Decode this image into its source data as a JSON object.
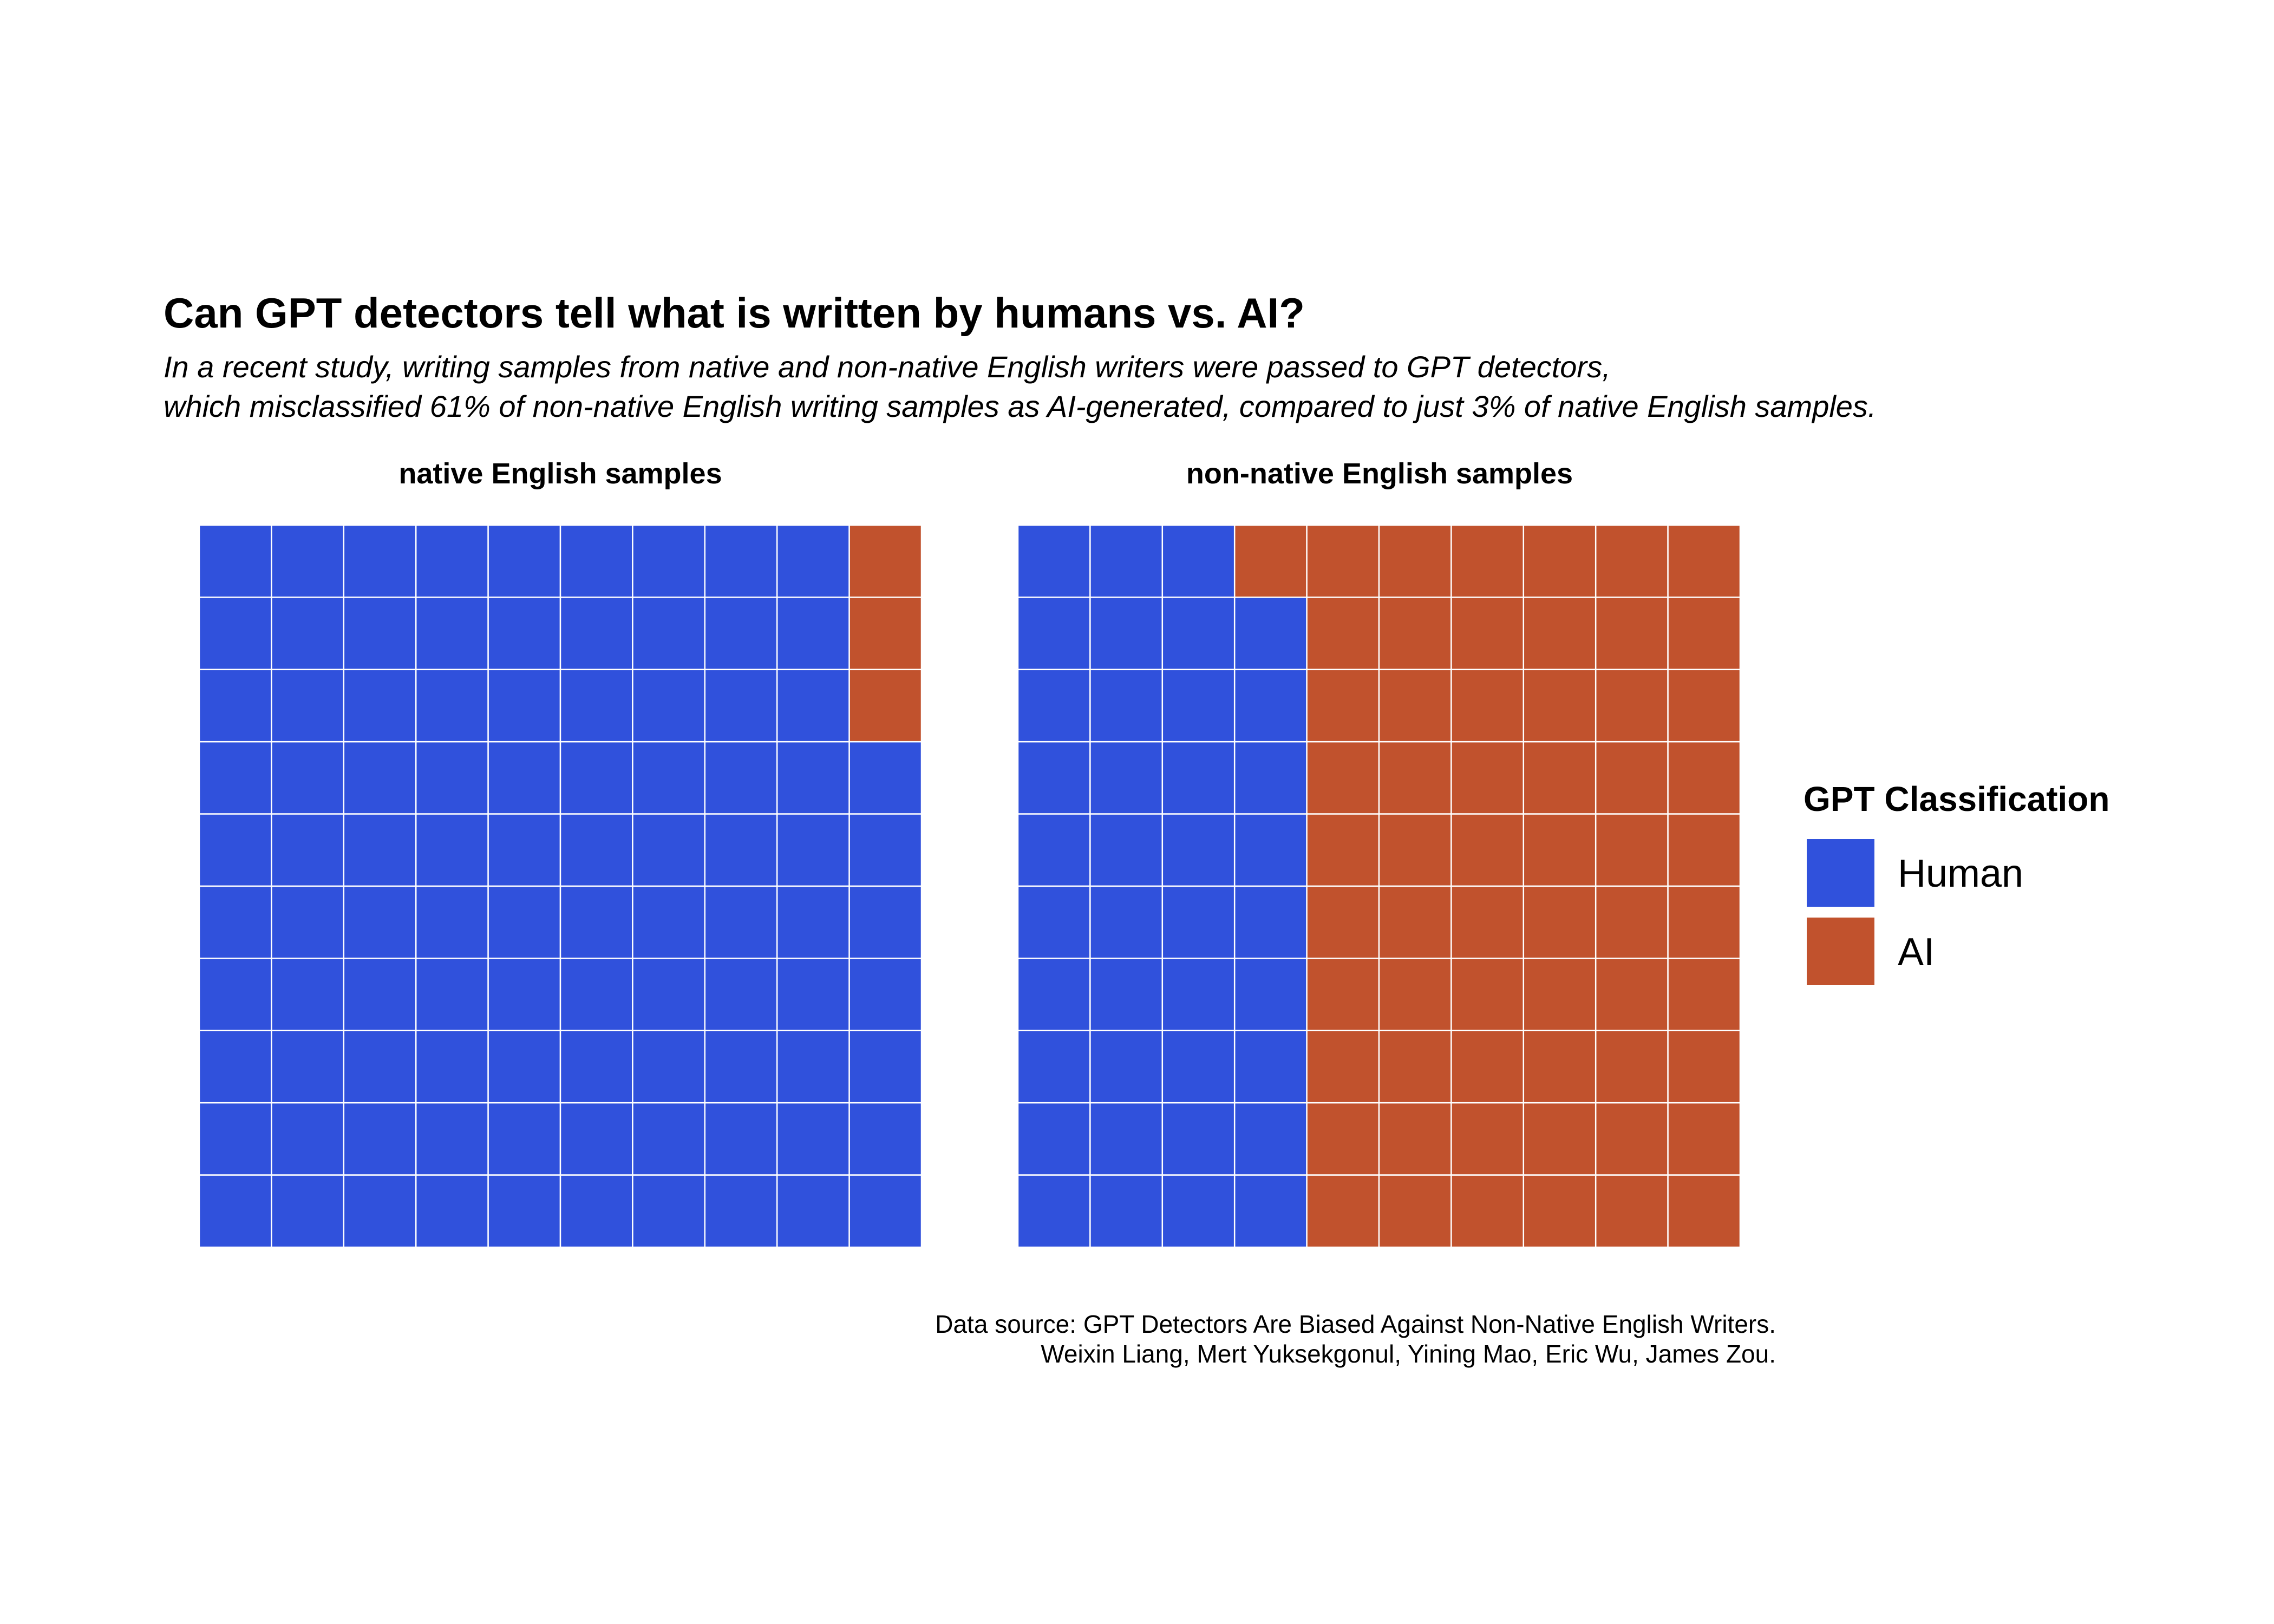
{
  "chart_data": {
    "type": "waffle",
    "title": "Can GPT detectors tell what is written by humans vs. AI?",
    "subtitle": [
      "In a recent study, writing samples from native and non-native English writers were passed to GPT detectors,",
      "which misclassified 61% of non-native English writing samples as AI-generated, compared to just 3% of native English samples."
    ],
    "caption": [
      "Data source: GPT Detectors Are Biased Against Non-Native English Writers.",
      "Weixin Liang, Mert Yuksekgonul, Yining Mao, Eric Wu, James Zou."
    ],
    "grid": {
      "rows": 10,
      "cols": 10
    },
    "legend": {
      "title": "GPT Classification",
      "position": "right",
      "entries": [
        {
          "label": "Human",
          "color": "#3051DC"
        },
        {
          "label": "AI",
          "color": "#C1522D"
        }
      ]
    },
    "panels": [
      {
        "title": "native English samples",
        "counts": {
          "Human": 97,
          "AI": 3
        }
      },
      {
        "title": "non-native English samples",
        "counts": {
          "Human": 39,
          "AI": 61
        }
      }
    ]
  }
}
